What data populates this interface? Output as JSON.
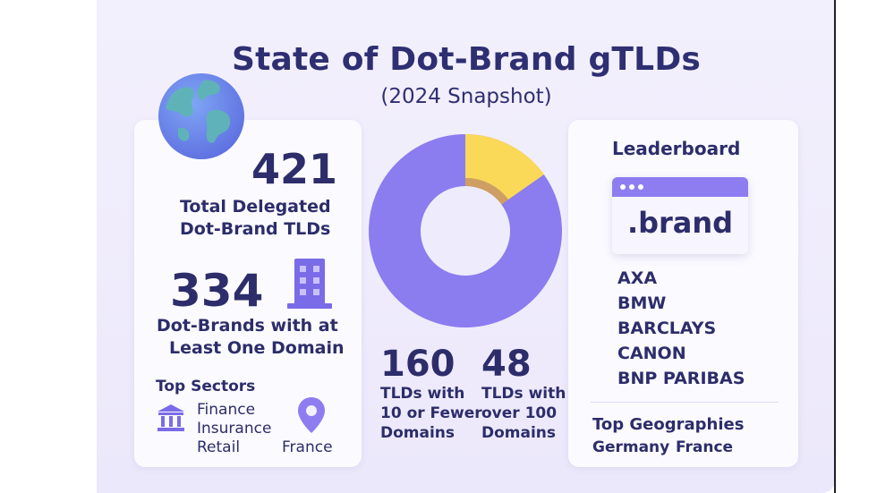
{
  "header": {
    "title": "State of Dot-Brand gTLDs",
    "subtitle": "(2024 Snapshot)"
  },
  "left": {
    "total_value": "421",
    "total_label_1": "Total Delegated",
    "total_label_2": "Dot-Brand TLDs",
    "active_value": "334",
    "active_label_1": "Dot-Brands with at",
    "active_label_2": "Least One Domain",
    "sectors_title": "Top Sectors",
    "sectors": [
      "Finance",
      "Insurance",
      "Retail"
    ],
    "geo_label": "France"
  },
  "center": {
    "stat1_value": "160",
    "stat1_label": [
      "TLDs with",
      "10 or Fewer",
      "Domains"
    ],
    "stat2_value": "48",
    "stat2_label": [
      "TLDs with",
      "over 100",
      "Domains"
    ],
    "donut_colors": {
      "main": "#8b7cf0",
      "highlight": "#f9d957",
      "highlight_dark": "#e0a63e"
    }
  },
  "right": {
    "title": "Leaderboard",
    "browser_text": ".brand",
    "items": [
      "AXA",
      "BMW",
      "BARCLAYS",
      "CANON",
      "BNP PARIBAS"
    ],
    "geo_title": "Top Geographies",
    "geos": [
      "Germany",
      "France"
    ]
  }
}
